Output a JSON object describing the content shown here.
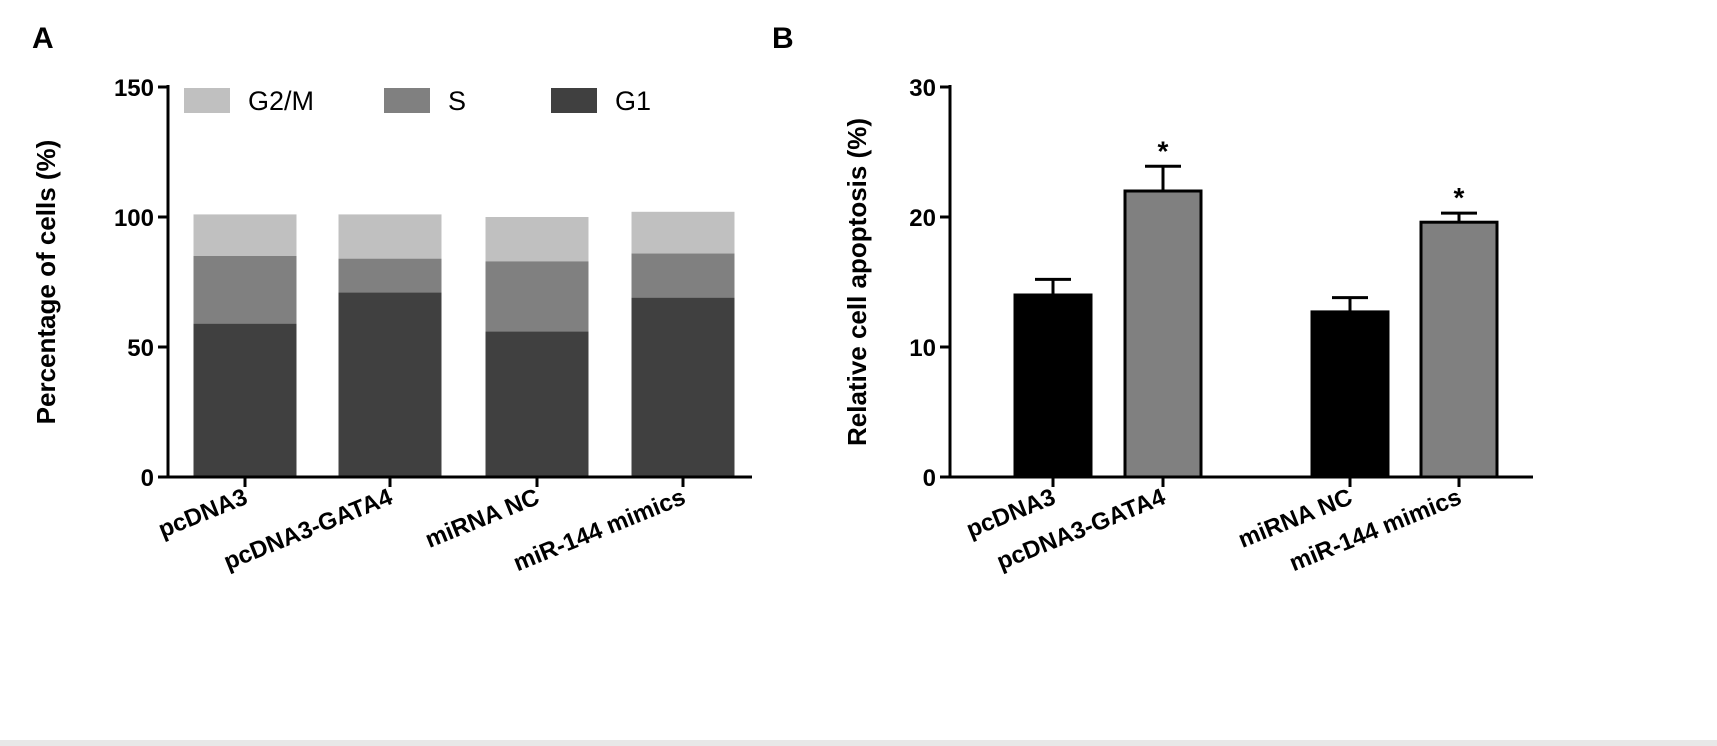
{
  "chart_data": [
    {
      "panel": "A",
      "type": "bar",
      "stacked": true,
      "ylabel": "Percentage of cells (%)",
      "ylim": [
        0,
        150
      ],
      "yticks": [
        0,
        50,
        100,
        150
      ],
      "categories": [
        "pcDNA3",
        "pcDNA3-GATA4",
        "miRNA NC",
        "miR-144 mimics"
      ],
      "series": [
        {
          "name": "G1",
          "color": "#404040",
          "values": [
            59,
            71,
            56,
            69
          ]
        },
        {
          "name": "S",
          "color": "#808080",
          "values": [
            26,
            13,
            27,
            17
          ]
        },
        {
          "name": "G2/M",
          "color": "#c0c0c0",
          "values": [
            16,
            17,
            17,
            16
          ]
        }
      ],
      "legend": {
        "placement": "top",
        "order": [
          "G2/M",
          "S",
          "G1"
        ]
      },
      "grid": false
    },
    {
      "panel": "B",
      "type": "bar",
      "ylabel": "Relative cell apoptosis (%)",
      "ylim": [
        0,
        30
      ],
      "yticks": [
        0,
        10,
        20,
        30
      ],
      "categories": [
        "pcDNA3",
        "pcDNA3-GATA4",
        "miRNA NC",
        "miR-144 mimics"
      ],
      "values": [
        14,
        22,
        12.7,
        19.6
      ],
      "errors": [
        1.2,
        1.9,
        1.1,
        0.7
      ],
      "colors": [
        "#000000",
        "#808080",
        "#000000",
        "#808080"
      ],
      "significance": [
        "",
        "*",
        "",
        "*"
      ],
      "grid": false
    }
  ]
}
